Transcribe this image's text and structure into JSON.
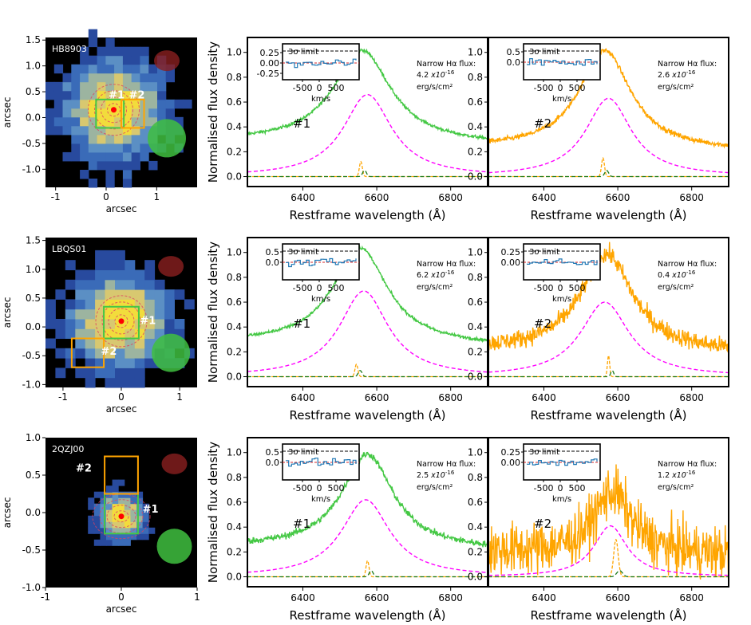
{
  "figure": {
    "y_axis_label_spec": "Normalised flux density",
    "x_axis_label_spec": "Restframe wavelength (Å)",
    "image_axis_label": "arcsec",
    "inset_limit_label": "3σ limit",
    "inset_x_label": "km/s",
    "narrow_flux_title": "Narrow Hα flux:",
    "flux_unit": "erg/s/cm²"
  },
  "colors": {
    "fit_broad": "#ff00ff",
    "fit_narrow": "#ffa500",
    "fit_continuum": "#1a7a1a",
    "inset_line": "#1f77b4",
    "inset_zero": "#d62728",
    "region1": "#44c844",
    "region2": "#ffa500",
    "marker": "#ff0000"
  },
  "rows": [
    {
      "target": "HB8903",
      "image": {
        "xlim": [
          -1.2,
          1.8
        ],
        "ylim": [
          -1.35,
          1.55
        ],
        "xticks": [
          -1,
          0,
          1
        ],
        "yticks": [
          -1.0,
          -0.5,
          0.0,
          0.5,
          1.0,
          1.5
        ],
        "region1_label": "#1",
        "region2_label": "#2"
      },
      "spectra": [
        {
          "region": "#1",
          "color": "#44c844",
          "flux_value": "4.2",
          "flux_exponent_text": "x10",
          "flux_exponent": "-16",
          "inset_yticks": [
            "0.25",
            "0.00",
            "-0.25"
          ],
          "inset_xticks": [
            "-500",
            "0",
            "500"
          ],
          "chart_data": {
            "type": "line",
            "xlim": [
              6250,
              6900
            ],
            "ylim": [
              -0.08,
              1.12
            ],
            "xticks": [
              6400,
              6600,
              6800
            ],
            "yticks": [
              0.0,
              0.2,
              0.4,
              0.6,
              0.8,
              1.0
            ],
            "continuum": 0.28,
            "peak": 1.03,
            "center": 6560,
            "width": 95,
            "noise": 0.012,
            "broad": {
              "amplitude": 0.66,
              "center": 6575,
              "width": 80
            },
            "narrow": {
              "amplitude": 0.12,
              "center": 6557,
              "width": 4
            }
          }
        },
        {
          "region": "#2",
          "color": "#ffa500",
          "flux_value": "2.6",
          "flux_exponent_text": "x10",
          "flux_exponent": "-16",
          "inset_yticks": [
            "0.5",
            "0.0"
          ],
          "inset_xticks": [
            "-500",
            "0",
            "500"
          ],
          "chart_data": {
            "type": "line",
            "xlim": [
              6250,
              6900
            ],
            "ylim": [
              -0.08,
              1.12
            ],
            "xticks": [
              6400,
              6600,
              6800
            ],
            "yticks": [
              0.0,
              0.2,
              0.4,
              0.6,
              0.8,
              1.0
            ],
            "continuum": 0.23,
            "peak": 1.03,
            "center": 6565,
            "width": 85,
            "noise": 0.02,
            "broad": {
              "amplitude": 0.63,
              "center": 6575,
              "width": 75
            },
            "narrow": {
              "amplitude": 0.15,
              "center": 6560,
              "width": 4
            }
          }
        }
      ]
    },
    {
      "target": "LBQS01",
      "image": {
        "xlim": [
          -1.3,
          1.3
        ],
        "ylim": [
          -1.05,
          1.55
        ],
        "xticks": [
          -1,
          0,
          1
        ],
        "yticks": [
          -1.0,
          -0.5,
          0.0,
          0.5,
          1.0,
          1.5
        ],
        "region1_label": "#1",
        "region2_label": "#2"
      },
      "spectra": [
        {
          "region": "#1",
          "color": "#44c844",
          "flux_value": "6.2",
          "flux_exponent_text": "x10",
          "flux_exponent": "-16",
          "inset_yticks": [
            "0.5",
            "0.0"
          ],
          "inset_xticks": [
            "-500",
            "0",
            "500"
          ],
          "chart_data": {
            "type": "line",
            "xlim": [
              6250,
              6900
            ],
            "ylim": [
              -0.08,
              1.12
            ],
            "xticks": [
              6400,
              6600,
              6800
            ],
            "yticks": [
              0.0,
              0.2,
              0.4,
              0.6,
              0.8,
              1.0
            ],
            "continuum": 0.27,
            "peak": 1.05,
            "center": 6555,
            "width": 90,
            "noise": 0.012,
            "broad": {
              "amplitude": 0.69,
              "center": 6565,
              "width": 80
            },
            "narrow": {
              "amplitude": 0.1,
              "center": 6545,
              "width": 4
            }
          }
        },
        {
          "region": "#2",
          "color": "#ffa500",
          "flux_value": "0.4",
          "flux_exponent_text": "x10",
          "flux_exponent": "-16",
          "inset_yticks": [
            "0.25",
            "0.00"
          ],
          "inset_xticks": [
            "-500",
            "0",
            "500"
          ],
          "chart_data": {
            "type": "line",
            "xlim": [
              6250,
              6900
            ],
            "ylim": [
              -0.08,
              1.12
            ],
            "xticks": [
              6400,
              6600,
              6800
            ],
            "yticks": [
              0.0,
              0.2,
              0.4,
              0.6,
              0.8,
              1.0
            ],
            "continuum": 0.22,
            "peak": 1.0,
            "center": 6570,
            "width": 85,
            "noise": 0.07,
            "broad": {
              "amplitude": 0.6,
              "center": 6565,
              "width": 80
            },
            "narrow": {
              "amplitude": 0.17,
              "center": 6575,
              "width": 3
            }
          }
        }
      ]
    },
    {
      "target": "2QZJ00",
      "image": {
        "xlim": [
          -1.0,
          1.0
        ],
        "ylim": [
          -1.0,
          1.0
        ],
        "xticks": [
          -1,
          0,
          1
        ],
        "yticks": [
          -1.0,
          -0.5,
          0.0,
          0.5,
          1.0
        ],
        "region1_label": "#1",
        "region2_label": "#2"
      },
      "spectra": [
        {
          "region": "#1",
          "color": "#44c844",
          "flux_value": "2.5",
          "flux_exponent_text": "x10",
          "flux_exponent": "-16",
          "inset_yticks": [
            "0.5",
            "0.0"
          ],
          "inset_xticks": [
            "-500",
            "0",
            "500"
          ],
          "chart_data": {
            "type": "line",
            "xlim": [
              6250,
              6900
            ],
            "ylim": [
              -0.08,
              1.12
            ],
            "xticks": [
              6400,
              6600,
              6800
            ],
            "yticks": [
              0.0,
              0.2,
              0.4,
              0.6,
              0.8,
              1.0
            ],
            "continuum": 0.24,
            "peak": 1.0,
            "center": 6575,
            "width": 85,
            "noise": 0.025,
            "broad": {
              "amplitude": 0.62,
              "center": 6570,
              "width": 80
            },
            "narrow": {
              "amplitude": 0.13,
              "center": 6575,
              "width": 4
            }
          }
        },
        {
          "region": "#2",
          "color": "#ffa500",
          "flux_value": "1.2",
          "flux_exponent_text": "x10",
          "flux_exponent": "-16",
          "inset_yticks": [
            "0.25",
            "0.00"
          ],
          "inset_xticks": [
            "-500",
            "0",
            "500"
          ],
          "chart_data": {
            "type": "line",
            "xlim": [
              6250,
              6900
            ],
            "ylim": [
              -0.08,
              1.12
            ],
            "xticks": [
              6400,
              6600,
              6800
            ],
            "yticks": [
              0.0,
              0.2,
              0.4,
              0.6,
              0.8,
              1.0
            ],
            "continuum": 0.2,
            "peak": 0.7,
            "center": 6585,
            "width": 60,
            "noise": 0.2,
            "broad": {
              "amplitude": 0.41,
              "center": 6580,
              "width": 55
            },
            "narrow": {
              "amplitude": 0.3,
              "center": 6595,
              "width": 6
            }
          }
        }
      ]
    }
  ]
}
